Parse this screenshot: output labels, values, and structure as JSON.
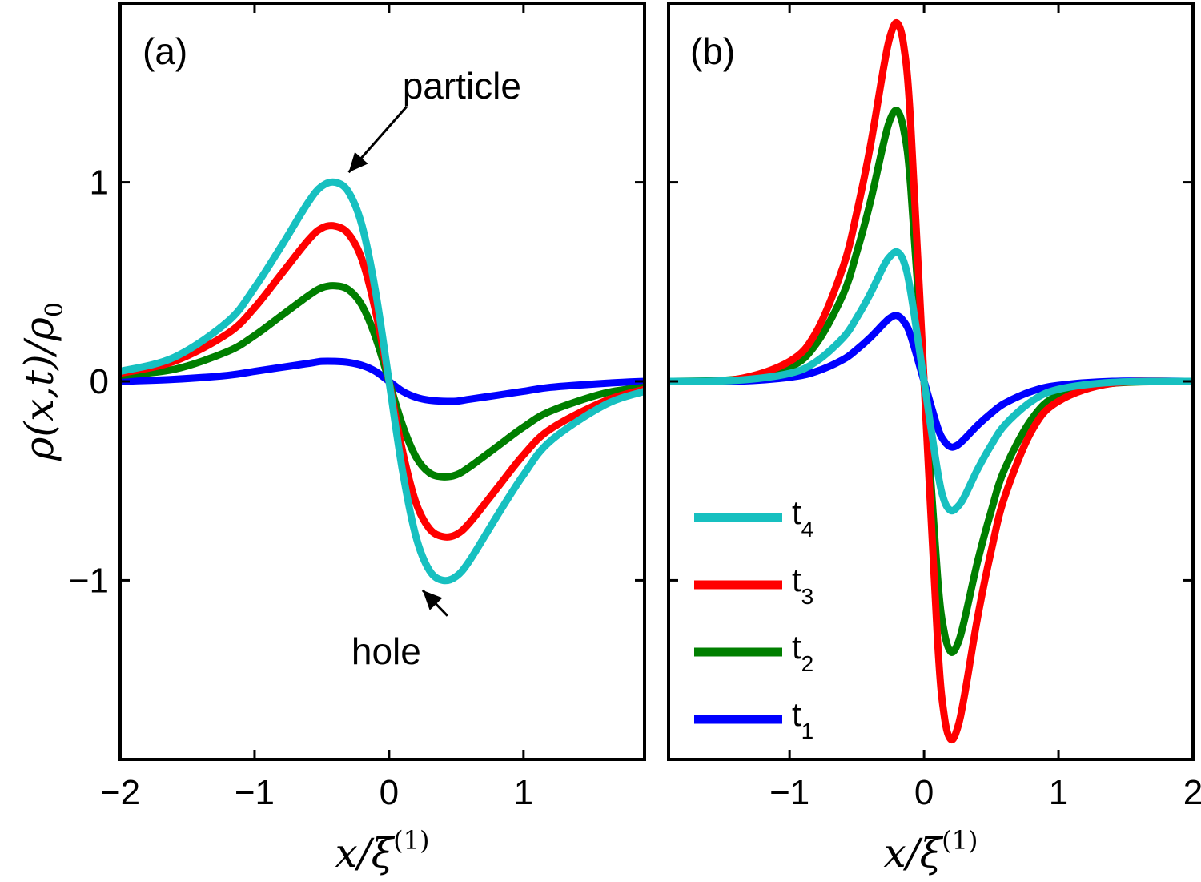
{
  "chart_data": [
    {
      "type": "line",
      "panel_label": "(a)",
      "xlabel": "x/ξ(1)",
      "ylabel": "ρ(x,t)/ρ0",
      "xlim": [
        -2,
        1.9
      ],
      "ylim": [
        -1.9,
        1.9
      ],
      "xticks": [
        -2,
        -1,
        0,
        1
      ],
      "xtick_labels": [
        "−2",
        "−1",
        "0",
        "1"
      ],
      "yticks": [
        -1,
        0,
        1
      ],
      "ytick_labels": [
        "−1",
        "0",
        "1"
      ],
      "grid": false,
      "x": [
        -2.0,
        -1.6,
        -1.2,
        -1.0,
        -0.8,
        -0.6,
        -0.5,
        -0.4,
        -0.3,
        -0.2,
        -0.1,
        0.0,
        0.1,
        0.2,
        0.3,
        0.4,
        0.5,
        0.6,
        0.8,
        1.0,
        1.2,
        1.6,
        1.9
      ],
      "series": [
        {
          "name": "t4",
          "color": "#17c0c0",
          "values": [
            0.05,
            0.12,
            0.3,
            0.47,
            0.68,
            0.9,
            0.98,
            1.0,
            0.95,
            0.78,
            0.45,
            0.0,
            -0.45,
            -0.78,
            -0.95,
            -1.0,
            -0.98,
            -0.9,
            -0.68,
            -0.47,
            -0.3,
            -0.12,
            -0.05
          ]
        },
        {
          "name": "t3",
          "color": "#ff0000",
          "values": [
            0.04,
            0.1,
            0.24,
            0.37,
            0.54,
            0.71,
            0.77,
            0.78,
            0.74,
            0.61,
            0.35,
            0.0,
            -0.35,
            -0.61,
            -0.74,
            -0.78,
            -0.77,
            -0.71,
            -0.54,
            -0.37,
            -0.24,
            -0.1,
            -0.04
          ]
        },
        {
          "name": "t2",
          "color": "#007f00",
          "values": [
            0.03,
            0.06,
            0.15,
            0.23,
            0.33,
            0.43,
            0.47,
            0.48,
            0.46,
            0.38,
            0.22,
            0.0,
            -0.22,
            -0.38,
            -0.46,
            -0.48,
            -0.47,
            -0.43,
            -0.33,
            -0.23,
            -0.15,
            -0.06,
            -0.03
          ]
        },
        {
          "name": "t1",
          "color": "#0000ff",
          "values": [
            0.0,
            0.01,
            0.03,
            0.05,
            0.07,
            0.09,
            0.1,
            0.1,
            0.095,
            0.08,
            0.05,
            0.0,
            -0.05,
            -0.08,
            -0.095,
            -0.1,
            -0.1,
            -0.09,
            -0.07,
            -0.05,
            -0.03,
            -0.01,
            0.0
          ]
        }
      ],
      "annotations": [
        {
          "text": "particle",
          "x": 0.1,
          "y": 1.42,
          "arrow_to": [
            -0.3,
            1.05
          ]
        },
        {
          "text": "hole",
          "x": -0.28,
          "y": -1.42,
          "arrow_to": [
            0.25,
            -1.05
          ]
        }
      ]
    },
    {
      "type": "line",
      "panel_label": "(b)",
      "xlabel": "x/ξ(1)",
      "ylabel": "",
      "xlim": [
        -1.9,
        2
      ],
      "ylim": [
        -1.9,
        1.9
      ],
      "xticks": [
        -1,
        0,
        1,
        2
      ],
      "xtick_labels": [
        "−1",
        "0",
        "1",
        "2"
      ],
      "yticks": [
        -1,
        0,
        1
      ],
      "ytick_labels": [
        "",
        "",
        ""
      ],
      "grid": false,
      "legend_position": "lower-left",
      "legend": [
        {
          "base": "t",
          "sub": "4",
          "color": "#17c0c0"
        },
        {
          "base": "t",
          "sub": "3",
          "color": "#ff0000"
        },
        {
          "base": "t",
          "sub": "2",
          "color": "#007f00"
        },
        {
          "base": "t",
          "sub": "1",
          "color": "#0000ff"
        }
      ],
      "x": [
        -1.9,
        -1.4,
        -1.0,
        -0.8,
        -0.6,
        -0.5,
        -0.4,
        -0.3,
        -0.25,
        -0.2,
        -0.15,
        -0.1,
        0.0,
        0.1,
        0.15,
        0.2,
        0.25,
        0.3,
        0.4,
        0.5,
        0.6,
        0.8,
        1.0,
        1.4,
        2.0
      ],
      "series": [
        {
          "name": "t4",
          "color": "#17c0c0",
          "values": [
            0.0,
            0.005,
            0.04,
            0.1,
            0.22,
            0.32,
            0.44,
            0.58,
            0.63,
            0.65,
            0.6,
            0.45,
            0.0,
            -0.45,
            -0.6,
            -0.65,
            -0.63,
            -0.58,
            -0.44,
            -0.32,
            -0.22,
            -0.1,
            -0.04,
            -0.005,
            0.0
          ]
        },
        {
          "name": "t3",
          "color": "#ff0000",
          "values": [
            0.0,
            0.01,
            0.1,
            0.25,
            0.58,
            0.85,
            1.18,
            1.58,
            1.74,
            1.8,
            1.68,
            1.3,
            0.0,
            -1.3,
            -1.68,
            -1.8,
            -1.74,
            -1.58,
            -1.18,
            -0.85,
            -0.58,
            -0.25,
            -0.1,
            -0.01,
            0.0
          ]
        },
        {
          "name": "t2",
          "color": "#007f00",
          "values": [
            0.0,
            0.01,
            0.07,
            0.19,
            0.44,
            0.65,
            0.9,
            1.2,
            1.32,
            1.36,
            1.26,
            0.98,
            0.0,
            -0.98,
            -1.26,
            -1.36,
            -1.32,
            -1.2,
            -0.9,
            -0.65,
            -0.44,
            -0.19,
            -0.07,
            -0.01,
            0.0
          ]
        },
        {
          "name": "t1",
          "color": "#0000ff",
          "values": [
            0.0,
            0.0,
            0.02,
            0.05,
            0.11,
            0.16,
            0.22,
            0.29,
            0.32,
            0.33,
            0.3,
            0.23,
            0.0,
            -0.23,
            -0.3,
            -0.33,
            -0.32,
            -0.29,
            -0.22,
            -0.16,
            -0.11,
            -0.05,
            -0.02,
            0.0,
            0.0
          ]
        }
      ]
    }
  ]
}
